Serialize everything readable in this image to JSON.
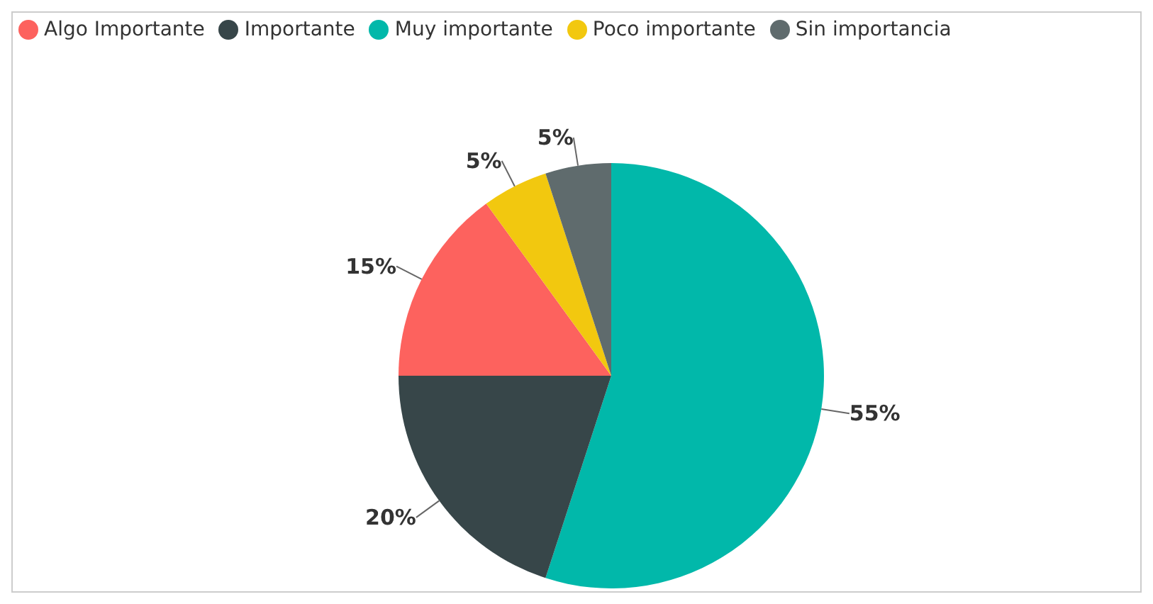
{
  "chart_data": {
    "type": "pie",
    "categories": [
      "Muy importante",
      "Importante",
      "Algo Importante",
      "Poco importante",
      "Sin importancia"
    ],
    "values": [
      55,
      20,
      15,
      5,
      5
    ],
    "colors": [
      "#01b8aa",
      "#374649",
      "#fd625e",
      "#f2c80f",
      "#5f6b6d"
    ],
    "value_labels": [
      "55%",
      "20%",
      "15%",
      "5%",
      "5%"
    ],
    "legend": "top left"
  }
}
